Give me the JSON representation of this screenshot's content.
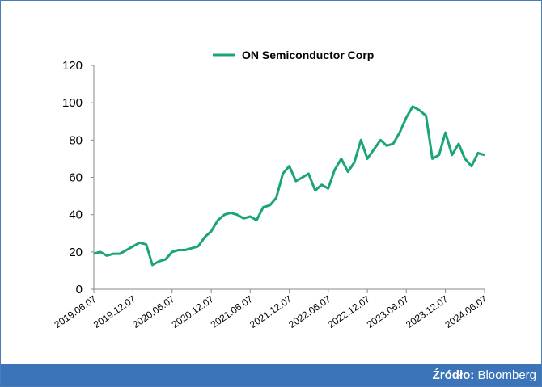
{
  "chart_data": {
    "type": "line",
    "series": [
      {
        "name": "ON Semiconductor Corp",
        "color": "#1aa672",
        "values": [
          19,
          20,
          18,
          19,
          19,
          21,
          23,
          25,
          24,
          13,
          15,
          16,
          20,
          21,
          21,
          22,
          23,
          28,
          31,
          37,
          40,
          41,
          40,
          38,
          39,
          37,
          44,
          45,
          49,
          62,
          66,
          58,
          60,
          62,
          53,
          56,
          54,
          64,
          70,
          63,
          68,
          80,
          70,
          75,
          80,
          77,
          78,
          84,
          92,
          98,
          96,
          93,
          70,
          72,
          84,
          72,
          78,
          70,
          66,
          73,
          72
        ]
      }
    ],
    "x": [
      "2019.06.07",
      "2019.07.07",
      "2019.08.07",
      "2019.09.07",
      "2019.10.07",
      "2019.11.07",
      "2019.12.07",
      "2020.01.07",
      "2020.02.07",
      "2020.03.07",
      "2020.04.07",
      "2020.05.07",
      "2020.06.07",
      "2020.07.07",
      "2020.08.07",
      "2020.09.07",
      "2020.10.07",
      "2020.11.07",
      "2020.12.07",
      "2021.01.07",
      "2021.02.07",
      "2021.03.07",
      "2021.04.07",
      "2021.05.07",
      "2021.06.07",
      "2021.07.07",
      "2021.08.07",
      "2021.09.07",
      "2021.10.07",
      "2021.11.07",
      "2021.12.07",
      "2022.01.07",
      "2022.02.07",
      "2022.03.07",
      "2022.04.07",
      "2022.05.07",
      "2022.06.07",
      "2022.07.07",
      "2022.08.07",
      "2022.09.07",
      "2022.10.07",
      "2022.11.07",
      "2022.12.07",
      "2023.01.07",
      "2023.02.07",
      "2023.03.07",
      "2023.04.07",
      "2023.05.07",
      "2023.06.07",
      "2023.07.07",
      "2023.08.07",
      "2023.09.07",
      "2023.10.07",
      "2023.11.07",
      "2023.12.07",
      "2024.01.07",
      "2024.02.07",
      "2024.03.07",
      "2024.04.07",
      "2024.05.07",
      "2024.06.07"
    ],
    "xlim": [
      "2019.06.07",
      "2024.06.07"
    ],
    "xticks": [
      "2019.06.07",
      "2019.12.07",
      "2020.06.07",
      "2020.12.07",
      "2021.06.07",
      "2021.12.07",
      "2022.06.07",
      "2022.12.07",
      "2023.06.07",
      "2023.12.07",
      "2024.06.07"
    ],
    "ylim": [
      0,
      120
    ],
    "yticks": [
      0,
      20,
      40,
      60,
      80,
      100,
      120
    ],
    "legend": "top"
  },
  "footer": {
    "label": "Źródło:",
    "source": "Bloomberg"
  }
}
